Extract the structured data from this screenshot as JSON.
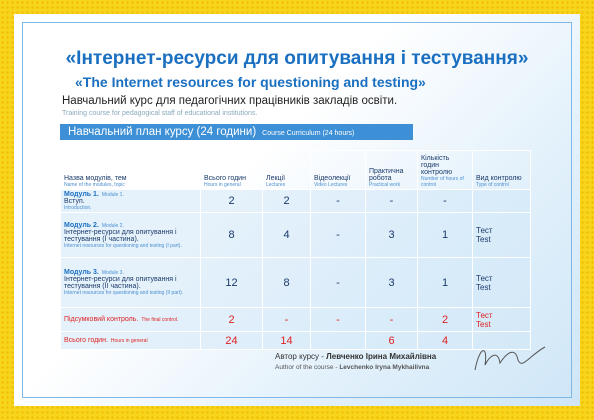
{
  "header": {
    "title": "«Інтернет-ресурси для опитування і тестування»",
    "title_en": "«The Internet resources for questioning and testing»",
    "subtitle": "Навчальний курс для педагогічних працівників закладів освіти.",
    "subtitle_en": "Training course for pedagogical staff of educational institutions."
  },
  "plan": {
    "title": "Навчальний план курсу (24 години)",
    "title_en": "Course Curriculum (24 hours)"
  },
  "table": {
    "headers": [
      {
        "uk": "Назва модулів, тем",
        "en": "Name of the modules, topic"
      },
      {
        "uk": "Всього годин",
        "en": "Hours in general"
      },
      {
        "uk": "Лекції",
        "en": "Lectures"
      },
      {
        "uk": "Відеолекції",
        "en": "Video Lectures"
      },
      {
        "uk": "Практична робота",
        "en": "Practical work"
      },
      {
        "uk": "Кількість годин контролю",
        "en": "Number of hours of control"
      },
      {
        "uk": "Вид контролю",
        "en": "Type of control"
      }
    ],
    "rows": [
      {
        "label": "Модуль 1.",
        "label_en": "Module 1.",
        "topic": "Вступ.",
        "topic_en": "Introduction.",
        "cells": [
          2,
          2,
          "-",
          "-",
          "-"
        ],
        "type": []
      },
      {
        "label": "Модуль 2.",
        "label_en": "Module 2.",
        "topic": "Інтернет-ресурси для опитування і тестування (І частина).",
        "topic_en": "Internet resources for questioning and testing (I part).",
        "cells": [
          8,
          4,
          "-",
          3,
          1
        ],
        "type": [
          "Тест",
          "Test"
        ]
      },
      {
        "label": "Модуль 3.",
        "label_en": "Module 3.",
        "topic": "Інтернет-ресурси для опитування і тестування (ІІ частина).",
        "topic_en": "Internet resources for questioning and testing (II part).",
        "cells": [
          12,
          8,
          "-",
          3,
          1
        ],
        "type": [
          "Тест",
          "Test"
        ]
      },
      {
        "label": "Підсумковий контроль.",
        "label_en": "The final control.",
        "cells": [
          2,
          "-",
          "-",
          "-",
          2
        ],
        "type": [
          "Тест",
          "Test"
        ]
      },
      {
        "label": "Всього годин.",
        "label_en": "Hours in general",
        "cells": [
          24,
          14,
          null,
          6,
          4
        ],
        "type": []
      }
    ]
  },
  "author": {
    "label": "Автор курсу - ",
    "name": "Левченко Ірина Михайлівна",
    "label_en": "Author of the course - ",
    "name_en": "Levchenko Iryna Mykhailivna"
  }
}
